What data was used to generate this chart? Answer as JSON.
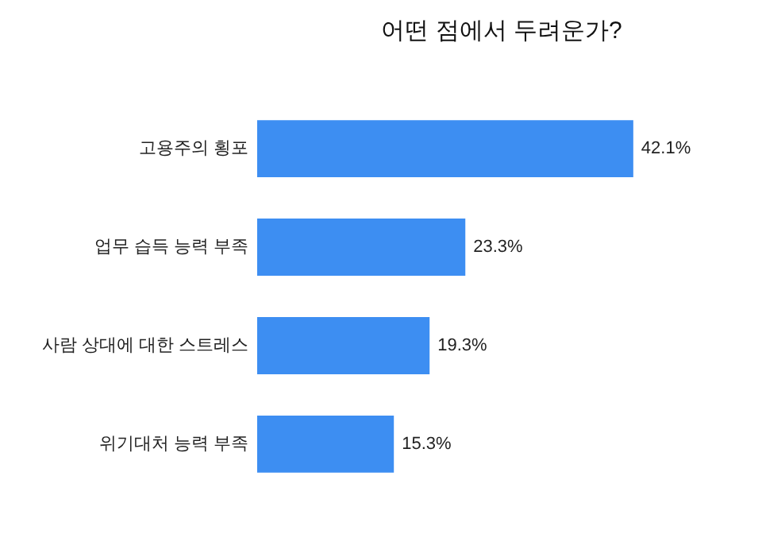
{
  "chart_data": {
    "type": "bar",
    "orientation": "horizontal",
    "title": "어떤 점에서 두려운가?",
    "categories": [
      "고용주의 횡포",
      "업무 습득 능력 부족",
      "사람 상대에 대한 스트레스",
      "위기대처 능력 부족"
    ],
    "values": [
      42.1,
      23.3,
      19.3,
      15.3
    ],
    "value_labels": [
      "42.1%",
      "23.3%",
      "19.3%",
      "15.3%"
    ],
    "color": "#3d8ef2"
  }
}
